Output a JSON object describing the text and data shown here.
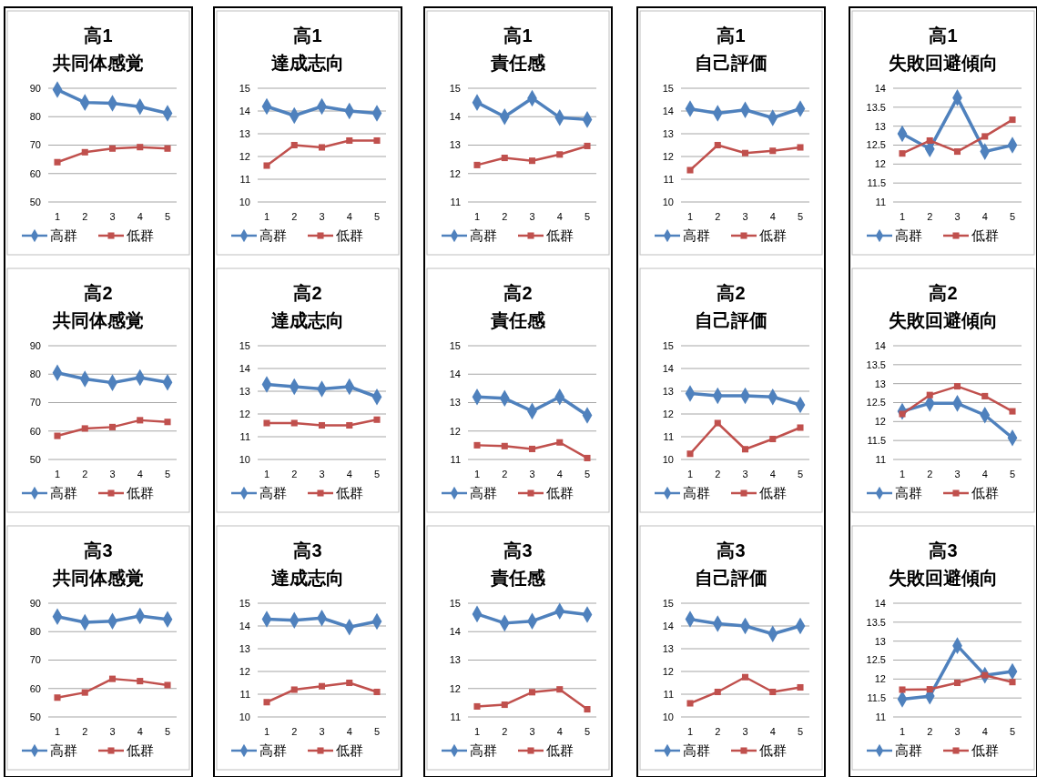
{
  "chart_data": [
    {
      "type": "line",
      "title": "高1",
      "subtitle": "共同体感覚",
      "categories": [
        "1",
        "2",
        "3",
        "4",
        "5"
      ],
      "ylim": [
        50,
        90
      ],
      "yticks": [
        50,
        60,
        70,
        80,
        90
      ],
      "grid": "y",
      "legend": "bottom",
      "series": [
        {
          "name": "高群",
          "color": "#4f81bd",
          "marker": "diamond",
          "values": [
            89.5,
            85,
            84.7,
            83.5,
            81.2
          ]
        },
        {
          "name": "低群",
          "color": "#c0504d",
          "marker": "square",
          "values": [
            64,
            67.5,
            68.8,
            69.3,
            68.8
          ]
        }
      ]
    },
    {
      "type": "line",
      "title": "高1",
      "subtitle": "達成志向",
      "categories": [
        "1",
        "2",
        "3",
        "4",
        "5"
      ],
      "ylim": [
        10,
        15
      ],
      "yticks": [
        10,
        11,
        12,
        13,
        14,
        15
      ],
      "grid": "y",
      "legend": "bottom",
      "series": [
        {
          "name": "高群",
          "color": "#4f81bd",
          "marker": "diamond",
          "values": [
            14.2,
            13.8,
            14.2,
            14.0,
            13.9
          ]
        },
        {
          "name": "低群",
          "color": "#c0504d",
          "marker": "square",
          "values": [
            11.6,
            12.5,
            12.4,
            12.7,
            12.7
          ]
        }
      ]
    },
    {
      "type": "line",
      "title": "高1",
      "subtitle": "責任感",
      "categories": [
        "1",
        "2",
        "3",
        "4",
        "5"
      ],
      "ylim": [
        11,
        15
      ],
      "yticks": [
        11,
        12,
        13,
        14,
        15
      ],
      "grid": "y",
      "legend": "bottom",
      "series": [
        {
          "name": "高群",
          "color": "#4f81bd",
          "marker": "diamond",
          "values": [
            14.5,
            14.0,
            14.65,
            13.97,
            13.9
          ]
        },
        {
          "name": "低群",
          "color": "#c0504d",
          "marker": "square",
          "values": [
            12.3,
            12.55,
            12.45,
            12.67,
            12.97
          ]
        }
      ]
    },
    {
      "type": "line",
      "title": "高1",
      "subtitle": "自己評価",
      "categories": [
        "1",
        "2",
        "3",
        "4",
        "5"
      ],
      "ylim": [
        10,
        15
      ],
      "yticks": [
        10,
        11,
        12,
        13,
        14,
        15
      ],
      "grid": "y",
      "legend": "bottom",
      "series": [
        {
          "name": "高群",
          "color": "#4f81bd",
          "marker": "diamond",
          "values": [
            14.1,
            13.9,
            14.05,
            13.7,
            14.1
          ]
        },
        {
          "name": "低群",
          "color": "#c0504d",
          "marker": "square",
          "values": [
            11.4,
            12.5,
            12.15,
            12.25,
            12.4
          ]
        }
      ]
    },
    {
      "type": "line",
      "title": "高1",
      "subtitle": "失敗回避傾向",
      "categories": [
        "1",
        "2",
        "3",
        "4",
        "5"
      ],
      "ylim": [
        11,
        14
      ],
      "yticks": [
        11,
        11.5,
        12,
        12.5,
        13,
        13.5,
        14
      ],
      "grid": "y",
      "legend": "bottom",
      "series": [
        {
          "name": "高群",
          "color": "#4f81bd",
          "marker": "diamond",
          "values": [
            12.8,
            12.4,
            13.75,
            12.33,
            12.5
          ]
        },
        {
          "name": "低群",
          "color": "#c0504d",
          "marker": "square",
          "values": [
            12.28,
            12.62,
            12.33,
            12.73,
            13.17
          ]
        }
      ]
    },
    {
      "type": "line",
      "title": "高2",
      "subtitle": "共同体感覚",
      "categories": [
        "1",
        "2",
        "3",
        "4",
        "5"
      ],
      "ylim": [
        50,
        90
      ],
      "yticks": [
        50,
        60,
        70,
        80,
        90
      ],
      "grid": "y",
      "legend": "bottom",
      "series": [
        {
          "name": "高群",
          "color": "#4f81bd",
          "marker": "diamond",
          "values": [
            80.5,
            78.3,
            77,
            78.8,
            77.1
          ]
        },
        {
          "name": "低群",
          "color": "#c0504d",
          "marker": "square",
          "values": [
            58.3,
            60.9,
            61.4,
            63.8,
            63.2
          ]
        }
      ]
    },
    {
      "type": "line",
      "title": "高2",
      "subtitle": "達成志向",
      "categories": [
        "1",
        "2",
        "3",
        "4",
        "5"
      ],
      "ylim": [
        10,
        15
      ],
      "yticks": [
        10,
        11,
        12,
        13,
        14,
        15
      ],
      "grid": "y",
      "legend": "bottom",
      "series": [
        {
          "name": "高群",
          "color": "#4f81bd",
          "marker": "diamond",
          "values": [
            13.3,
            13.2,
            13.1,
            13.2,
            12.75
          ]
        },
        {
          "name": "低群",
          "color": "#c0504d",
          "marker": "square",
          "values": [
            11.6,
            11.6,
            11.5,
            11.5,
            11.75
          ]
        }
      ]
    },
    {
      "type": "line",
      "title": "高2",
      "subtitle": "責任感",
      "categories": [
        "1",
        "2",
        "3",
        "4",
        "5"
      ],
      "ylim": [
        11,
        15
      ],
      "yticks": [
        11,
        12,
        13,
        14,
        15
      ],
      "grid": "y",
      "legend": "bottom",
      "series": [
        {
          "name": "高群",
          "color": "#4f81bd",
          "marker": "diamond",
          "values": [
            13.2,
            13.15,
            12.7,
            13.2,
            12.55
          ]
        },
        {
          "name": "低群",
          "color": "#c0504d",
          "marker": "square",
          "values": [
            11.5,
            11.47,
            11.37,
            11.6,
            11.05
          ]
        }
      ]
    },
    {
      "type": "line",
      "title": "高2",
      "subtitle": "自己評価",
      "categories": [
        "1",
        "2",
        "3",
        "4",
        "5"
      ],
      "ylim": [
        10,
        15
      ],
      "yticks": [
        10,
        11,
        12,
        13,
        14,
        15
      ],
      "grid": "y",
      "legend": "bottom",
      "series": [
        {
          "name": "高群",
          "color": "#4f81bd",
          "marker": "diamond",
          "values": [
            12.9,
            12.8,
            12.8,
            12.75,
            12.4
          ]
        },
        {
          "name": "低群",
          "color": "#c0504d",
          "marker": "square",
          "values": [
            10.25,
            11.6,
            10.45,
            10.9,
            11.4
          ]
        }
      ]
    },
    {
      "type": "line",
      "title": "高2",
      "subtitle": "失敗回避傾向",
      "categories": [
        "1",
        "2",
        "3",
        "4",
        "5"
      ],
      "ylim": [
        11,
        14
      ],
      "yticks": [
        11,
        11.5,
        12,
        12.5,
        13,
        13.5,
        14
      ],
      "grid": "y",
      "legend": "bottom",
      "series": [
        {
          "name": "高群",
          "color": "#4f81bd",
          "marker": "diamond",
          "values": [
            12.27,
            12.48,
            12.48,
            12.17,
            11.57
          ]
        },
        {
          "name": "低群",
          "color": "#c0504d",
          "marker": "square",
          "values": [
            12.2,
            12.7,
            12.93,
            12.67,
            12.27
          ]
        }
      ]
    },
    {
      "type": "line",
      "title": "高3",
      "subtitle": "共同体感覚",
      "categories": [
        "1",
        "2",
        "3",
        "4",
        "5"
      ],
      "ylim": [
        50,
        90
      ],
      "yticks": [
        50,
        60,
        70,
        80,
        90
      ],
      "grid": "y",
      "legend": "bottom",
      "series": [
        {
          "name": "高群",
          "color": "#4f81bd",
          "marker": "diamond",
          "values": [
            85.3,
            83.3,
            83.7,
            85.5,
            84.3
          ]
        },
        {
          "name": "低群",
          "color": "#c0504d",
          "marker": "square",
          "values": [
            56.8,
            58.6,
            63.4,
            62.6,
            61.2
          ]
        }
      ]
    },
    {
      "type": "line",
      "title": "高3",
      "subtitle": "達成志向",
      "categories": [
        "1",
        "2",
        "3",
        "4",
        "5"
      ],
      "ylim": [
        10,
        15
      ],
      "yticks": [
        10,
        11,
        12,
        13,
        14,
        15
      ],
      "grid": "y",
      "legend": "bottom",
      "series": [
        {
          "name": "高群",
          "color": "#4f81bd",
          "marker": "diamond",
          "values": [
            14.3,
            14.25,
            14.35,
            13.95,
            14.2
          ]
        },
        {
          "name": "低群",
          "color": "#c0504d",
          "marker": "square",
          "values": [
            10.65,
            11.2,
            11.35,
            11.5,
            11.1
          ]
        }
      ]
    },
    {
      "type": "line",
      "title": "高3",
      "subtitle": "責任感",
      "categories": [
        "1",
        "2",
        "3",
        "4",
        "5"
      ],
      "ylim": [
        11,
        15
      ],
      "yticks": [
        11,
        12,
        13,
        14,
        15
      ],
      "grid": "y",
      "legend": "bottom",
      "series": [
        {
          "name": "高群",
          "color": "#4f81bd",
          "marker": "diamond",
          "values": [
            14.62,
            14.3,
            14.37,
            14.72,
            14.6
          ]
        },
        {
          "name": "低群",
          "color": "#c0504d",
          "marker": "square",
          "values": [
            11.37,
            11.43,
            11.87,
            11.97,
            11.27
          ]
        }
      ]
    },
    {
      "type": "line",
      "title": "高3",
      "subtitle": "自己評価",
      "categories": [
        "1",
        "2",
        "3",
        "4",
        "5"
      ],
      "ylim": [
        10,
        15
      ],
      "yticks": [
        10,
        11,
        12,
        13,
        14,
        15
      ],
      "grid": "y",
      "legend": "bottom",
      "series": [
        {
          "name": "高群",
          "color": "#4f81bd",
          "marker": "diamond",
          "values": [
            14.3,
            14.1,
            14.0,
            13.65,
            14.0
          ]
        },
        {
          "name": "低群",
          "color": "#c0504d",
          "marker": "square",
          "values": [
            10.6,
            11.1,
            11.75,
            11.1,
            11.3
          ]
        }
      ]
    },
    {
      "type": "line",
      "title": "高3",
      "subtitle": "失敗回避傾向",
      "categories": [
        "1",
        "2",
        "3",
        "4",
        "5"
      ],
      "ylim": [
        11,
        14
      ],
      "yticks": [
        11,
        11.5,
        12,
        12.5,
        13,
        13.5,
        14
      ],
      "grid": "y",
      "legend": "bottom",
      "series": [
        {
          "name": "高群",
          "color": "#4f81bd",
          "marker": "diamond",
          "values": [
            11.47,
            11.55,
            12.88,
            12.1,
            12.2
          ]
        },
        {
          "name": "低群",
          "color": "#c0504d",
          "marker": "square",
          "values": [
            11.72,
            11.73,
            11.9,
            12.1,
            11.92
          ]
        }
      ]
    }
  ]
}
